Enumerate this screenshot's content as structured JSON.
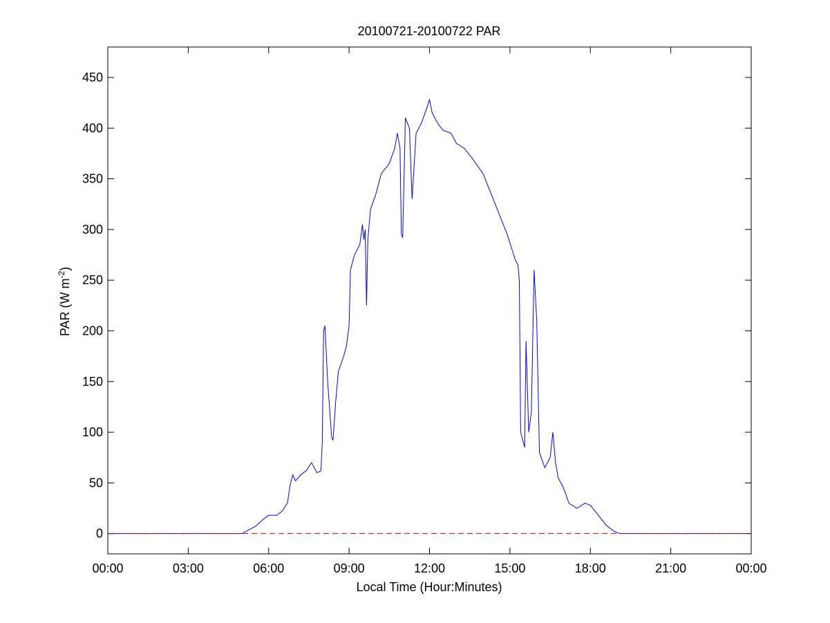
{
  "chart_data": {
    "type": "line",
    "title": "20100721-20100722 PAR",
    "xlabel": "Local Time (Hour:Minutes)",
    "ylabel": [
      "PAR (W m",
      "-2",
      ")"
    ],
    "x": [
      0,
      5.0,
      5.5,
      5.8,
      6.0,
      6.3,
      6.5,
      6.7,
      6.8,
      6.9,
      7.0,
      7.2,
      7.4,
      7.6,
      7.8,
      7.95,
      8.0,
      8.05,
      8.1,
      8.2,
      8.35,
      8.4,
      8.5,
      8.6,
      8.8,
      8.9,
      9.0,
      9.05,
      9.2,
      9.4,
      9.5,
      9.55,
      9.6,
      9.65,
      9.7,
      9.8,
      10.0,
      10.2,
      10.5,
      10.7,
      10.8,
      10.9,
      10.95,
      11.0,
      11.1,
      11.25,
      11.35,
      11.5,
      11.7,
      11.9,
      12.0,
      12.1,
      12.3,
      12.5,
      12.8,
      13.0,
      13.3,
      13.6,
      14.0,
      14.3,
      14.6,
      14.9,
      15.2,
      15.3,
      15.35,
      15.4,
      15.55,
      15.6,
      15.7,
      15.8,
      15.9,
      16.0,
      16.1,
      16.3,
      16.5,
      16.6,
      16.7,
      16.8,
      17.0,
      17.2,
      17.5,
      17.8,
      18.0,
      18.3,
      18.6,
      18.9,
      19.1,
      24
    ],
    "series": [
      {
        "color": "#0000ff",
        "values": [
          0,
          0,
          7,
          14,
          18,
          18,
          22,
          30,
          48,
          58,
          52,
          58,
          62,
          70,
          60,
          62,
          90,
          200,
          205,
          150,
          95,
          92,
          130,
          160,
          175,
          185,
          205,
          260,
          275,
          285,
          305,
          290,
          300,
          225,
          290,
          320,
          335,
          355,
          365,
          380,
          395,
          380,
          295,
          292,
          410,
          400,
          330,
          395,
          405,
          420,
          428,
          415,
          405,
          398,
          395,
          385,
          380,
          370,
          355,
          335,
          315,
          295,
          270,
          265,
          250,
          100,
          85,
          190,
          100,
          120,
          260,
          210,
          80,
          65,
          75,
          100,
          70,
          55,
          45,
          30,
          25,
          30,
          28,
          18,
          8,
          2,
          0,
          0
        ]
      }
    ],
    "hline": {
      "value": 0,
      "color": "#cc0000"
    },
    "xlim": [
      0,
      24
    ],
    "ylim": [
      -20,
      480
    ],
    "xticks": [
      {
        "value": 0,
        "label": "00:00"
      },
      {
        "value": 3,
        "label": "03:00"
      },
      {
        "value": 6,
        "label": "06:00"
      },
      {
        "value": 9,
        "label": "09:00"
      },
      {
        "value": 12,
        "label": "12:00"
      },
      {
        "value": 15,
        "label": "15:00"
      },
      {
        "value": 18,
        "label": "18:00"
      },
      {
        "value": 21,
        "label": "21:00"
      },
      {
        "value": 24,
        "label": "00:00"
      }
    ],
    "yticks": [
      0,
      50,
      100,
      150,
      200,
      250,
      300,
      350,
      400,
      450
    ]
  }
}
